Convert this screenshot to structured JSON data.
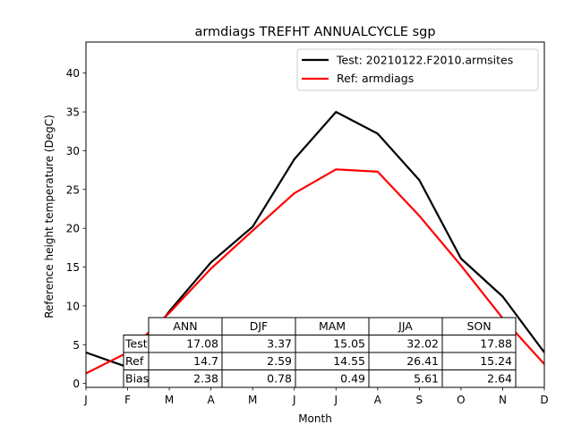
{
  "chart_data": {
    "type": "line",
    "title": "armdiags TREFHT ANNUALCYCLE sgp",
    "xlabel": "Month",
    "ylabel": "Reference height temperature (DegC)",
    "x": [
      "J",
      "F",
      "M",
      "A",
      "M",
      "J",
      "J",
      "A",
      "S",
      "O",
      "N",
      "D"
    ],
    "ylim": [
      -0.5,
      44
    ],
    "yticks": [
      0,
      5,
      10,
      15,
      20,
      25,
      30,
      35,
      40
    ],
    "grid": false,
    "legend_position": "top-right",
    "series": [
      {
        "name": "Test: 20210122.F2010.armsites",
        "color": "#000000",
        "values": [
          4.0,
          2.1,
          9.3,
          15.6,
          20.2,
          28.9,
          35.0,
          32.2,
          26.2,
          16.1,
          11.2,
          4.0
        ]
      },
      {
        "name": "Ref: armdiags",
        "color": "#ff0000",
        "values": [
          1.3,
          4.0,
          9.1,
          14.8,
          19.7,
          24.5,
          27.6,
          27.3,
          21.6,
          15.2,
          8.4,
          2.5
        ]
      }
    ],
    "table": {
      "columns": [
        "ANN",
        "DJF",
        "MAM",
        "JJA",
        "SON"
      ],
      "rows": [
        {
          "label": "Test",
          "values": [
            "17.08",
            "3.37",
            "15.05",
            "32.02",
            "17.88"
          ]
        },
        {
          "label": "Ref",
          "values": [
            "14.7",
            "2.59",
            "14.55",
            "26.41",
            "15.24"
          ]
        },
        {
          "label": "Bias",
          "values": [
            "2.38",
            "0.78",
            "0.49",
            "5.61",
            "2.64"
          ]
        }
      ]
    }
  }
}
